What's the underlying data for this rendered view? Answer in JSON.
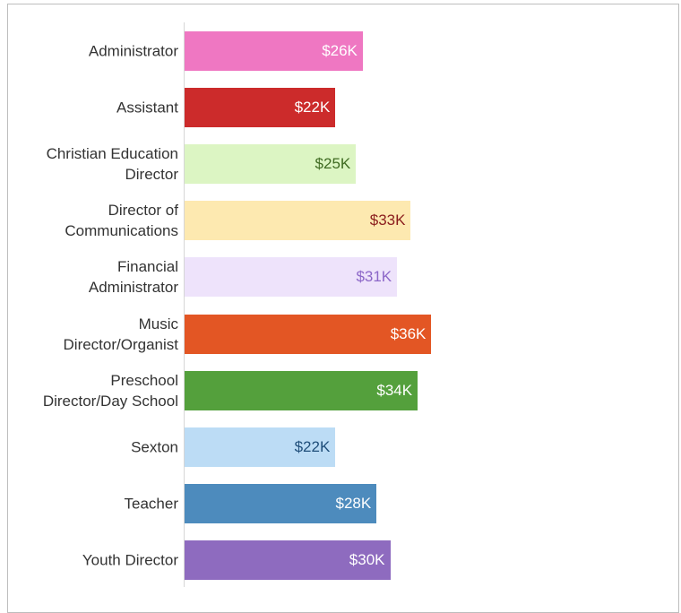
{
  "chart_data": {
    "type": "hbar",
    "categories": [
      "Administrator",
      "Assistant",
      "Christian Education Director",
      "Director of Communications",
      "Financial Administrator",
      "Music Director/Organist",
      "Preschool Director/Day School",
      "Sexton",
      "Teacher",
      "Youth Director"
    ],
    "values": [
      26,
      22,
      25,
      33,
      31,
      36,
      34,
      22,
      28,
      30
    ],
    "value_labels": [
      "$26K",
      "$22K",
      "$25K",
      "$33K",
      "$31K",
      "$36K",
      "$34K",
      "$22K",
      "$28K",
      "$30K"
    ],
    "colors": [
      "#ef77c2",
      "#cc2b2b",
      "#dcf5c3",
      "#fde9b0",
      "#eee3fb",
      "#e35624",
      "#54a03c",
      "#bcdcf5",
      "#4d8bbd",
      "#8e6bbf"
    ],
    "label_colors": [
      "#ffffff",
      "#ffffff",
      "#3f6b22",
      "#8b1d1d",
      "#8c67c8",
      "#ffffff",
      "#ffffff",
      "#1f4e7a",
      "#ffffff",
      "#ffffff"
    ]
  }
}
